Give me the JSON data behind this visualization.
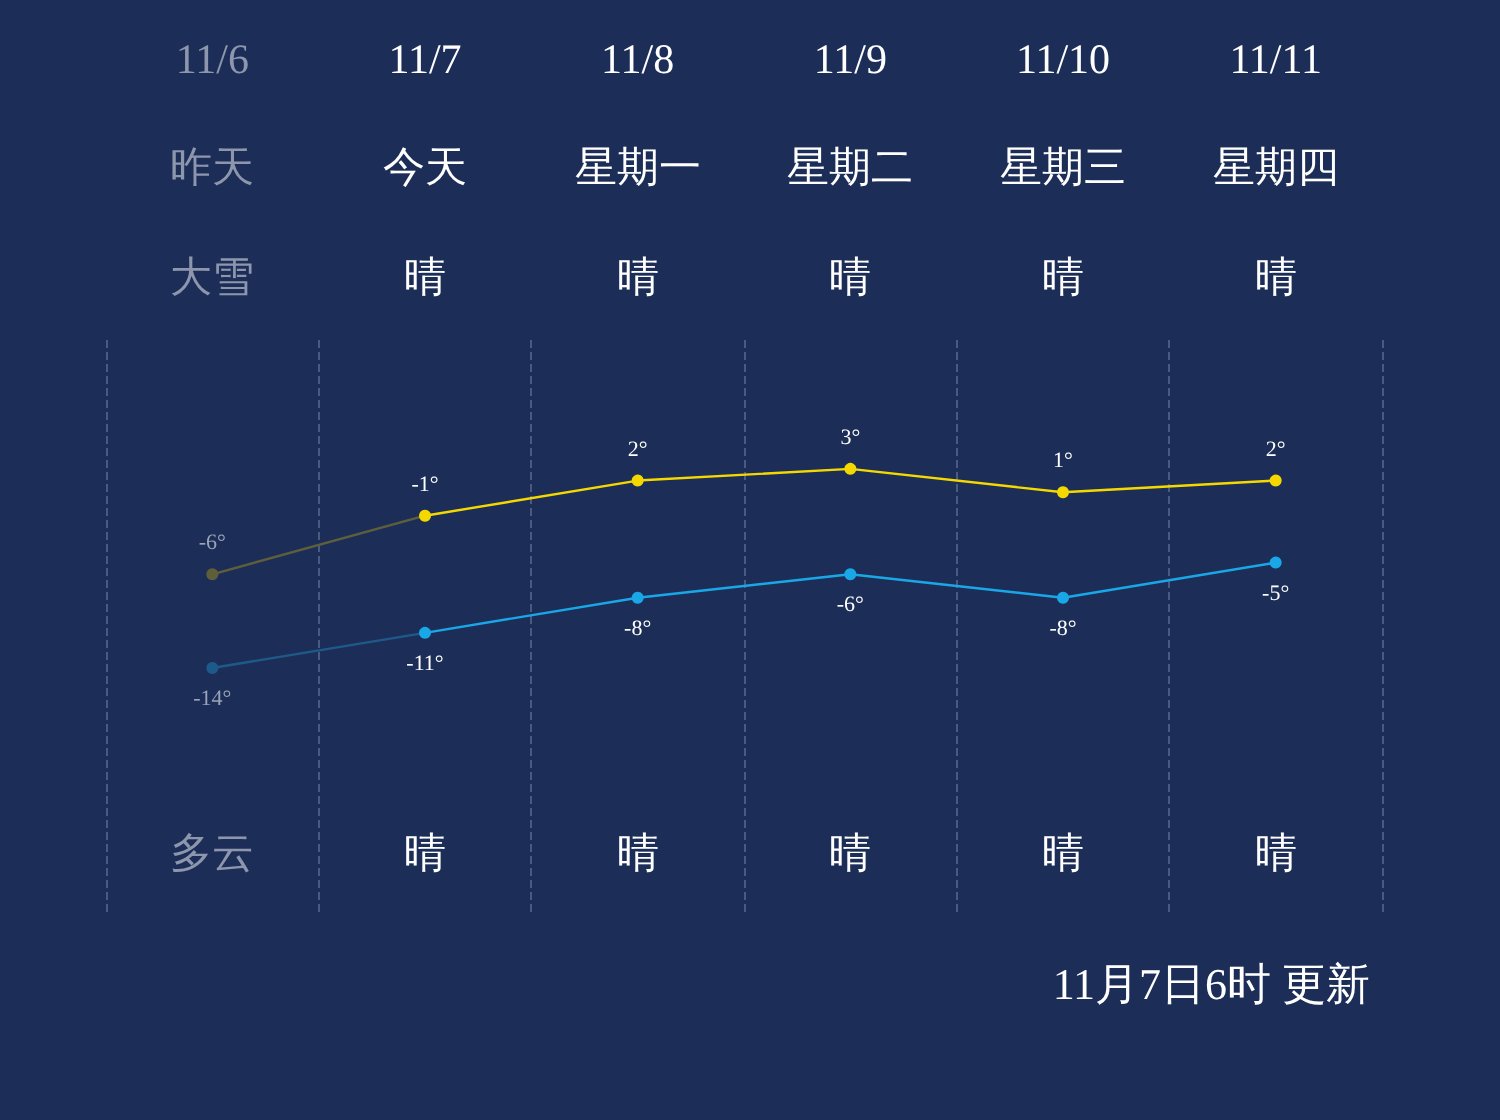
{
  "chart_data": {
    "type": "line",
    "categories": [
      "11/6",
      "11/7",
      "11/8",
      "11/9",
      "11/10",
      "11/11"
    ],
    "series": [
      {
        "color": "#f5d800",
        "colors": [
          "#5e5f3a",
          "#f5d800",
          "#f5d800",
          "#f5d800",
          "#f5d800",
          "#f5d800"
        ],
        "values": [
          -6,
          -1,
          2,
          3,
          1,
          2
        ],
        "value_labels": [
          "-6°",
          "-1°",
          "2°",
          "3°",
          "1°",
          "2°"
        ]
      },
      {
        "color": "#19a7e8",
        "colors": [
          "#1d5a8a",
          "#19a7e8",
          "#19a7e8",
          "#19a7e8",
          "#19a7e8",
          "#19a7e8"
        ],
        "values": [
          -14,
          -11,
          -8,
          -6,
          -8,
          -5
        ],
        "value_labels": [
          "-14°",
          "-11°",
          "-8°",
          "-6°",
          "-8°",
          "-5°"
        ]
      }
    ],
    "annotations": [
      "昨天",
      "今天",
      "星期一",
      "星期二",
      "星期三",
      "星期四",
      "大雪",
      "晴",
      "晴",
      "晴",
      "晴",
      "晴",
      "多云",
      "晴",
      "晴",
      "晴",
      "晴",
      "晴",
      "11月7日6时 更新"
    ],
    "grid": "x",
    "marker": "circle",
    "line_style": "solid"
  }
}
